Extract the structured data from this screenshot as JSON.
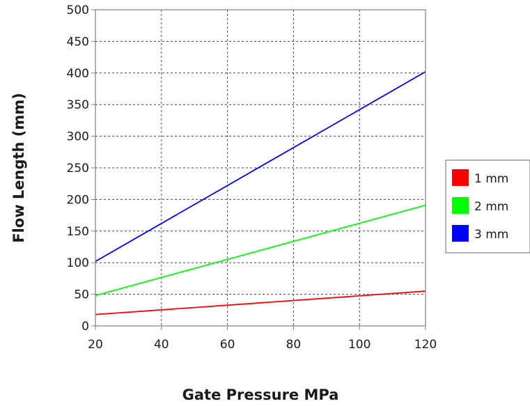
{
  "chart_data": {
    "type": "line",
    "title": "",
    "xlabel": "Gate Pressure MPa",
    "ylabel": "Flow Length (mm)",
    "xlim": [
      20,
      120
    ],
    "ylim": [
      0,
      500
    ],
    "x_ticks": [
      20,
      40,
      60,
      80,
      100,
      120
    ],
    "y_ticks": [
      0,
      50,
      100,
      150,
      200,
      250,
      300,
      350,
      400,
      450,
      500
    ],
    "grid": true,
    "legend_position": "right",
    "series": [
      {
        "name": "1 mm",
        "color": "#ff0000",
        "x": [
          20,
          120
        ],
        "y": [
          18,
          55
        ]
      },
      {
        "name": "2 mm",
        "color": "#00ff00",
        "x": [
          20,
          120
        ],
        "y": [
          48,
          191
        ]
      },
      {
        "name": "3 mm",
        "color": "#0000ff",
        "x": [
          20,
          120
        ],
        "y": [
          102,
          402
        ]
      }
    ]
  }
}
